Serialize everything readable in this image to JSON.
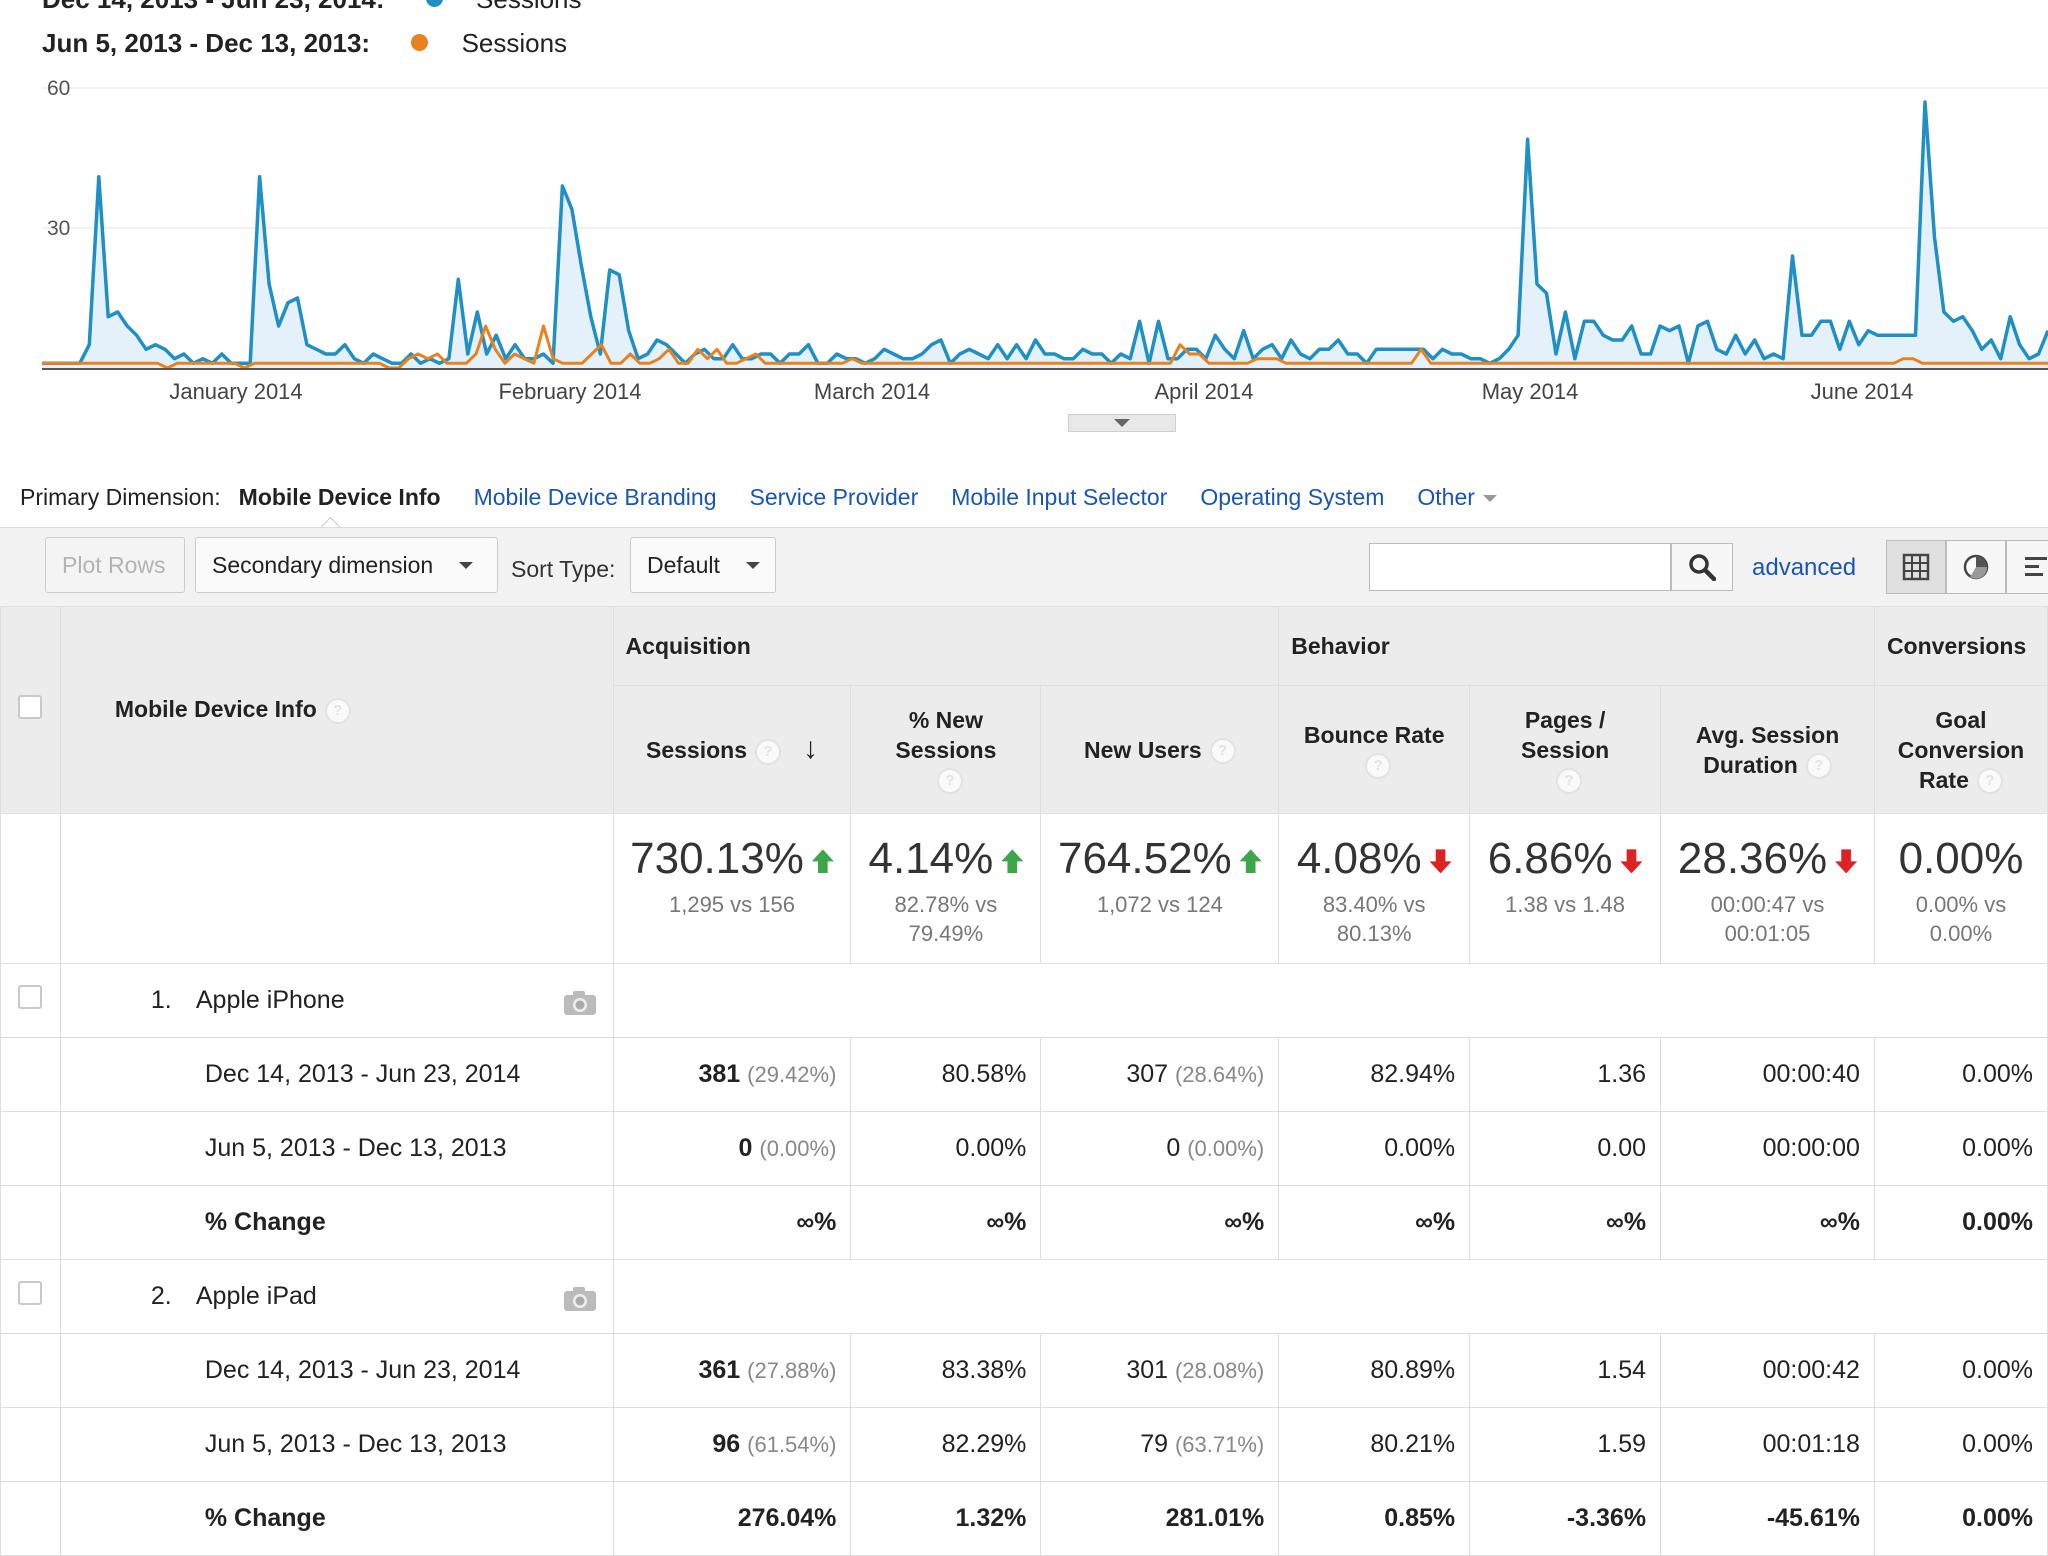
{
  "legend": {
    "range_top": "Dec 14, 2013 - Jun 23, 2014:",
    "range_bottom": "Jun 5, 2013 - Dec 13, 2013:",
    "series_label": "Sessions",
    "colors": {
      "current": "#1f8fc4",
      "previous": "#e8821e"
    }
  },
  "chart_data": {
    "type": "line",
    "ylim": [
      0,
      60
    ],
    "yticks": [
      "60",
      "30"
    ],
    "x_labels": [
      "January 2014",
      "February 2014",
      "March 2014",
      "April 2014",
      "May 2014",
      "June 2014"
    ],
    "series": [
      {
        "color": "#1f8fc4",
        "values": [
          1,
          1,
          1,
          1,
          1,
          5,
          41,
          11,
          12,
          9,
          7,
          4,
          5,
          4,
          2,
          3,
          1,
          2,
          1,
          3,
          1,
          1,
          1,
          41,
          18,
          9,
          14,
          15,
          5,
          4,
          3,
          3,
          5,
          2,
          1,
          3,
          2,
          1,
          1,
          3,
          1,
          2,
          1,
          2,
          19,
          3,
          12,
          3,
          7,
          2,
          5,
          2,
          2,
          3,
          1,
          39,
          34,
          22,
          11,
          3,
          21,
          20,
          8,
          2,
          3,
          6,
          5,
          3,
          1,
          3,
          4,
          2,
          2,
          5,
          2,
          2,
          3,
          3,
          1,
          3,
          3,
          5,
          1,
          1,
          3,
          2,
          2,
          1,
          2,
          4,
          3,
          2,
          2,
          3,
          5,
          6,
          1,
          3,
          4,
          3,
          2,
          5,
          2,
          5,
          2,
          6,
          3,
          3,
          2,
          2,
          4,
          3,
          3,
          1,
          3,
          2,
          10,
          1,
          10,
          2,
          2,
          4,
          4,
          2,
          7,
          4,
          2,
          8,
          2,
          4,
          5,
          2,
          6,
          3,
          2,
          4,
          4,
          6,
          3,
          3,
          1,
          4,
          4,
          4,
          4,
          4,
          4,
          2,
          4,
          3,
          3,
          2,
          2,
          1,
          2,
          4,
          7,
          49,
          18,
          16,
          3,
          12,
          2,
          10,
          10,
          7,
          6,
          6,
          9,
          3,
          3,
          9,
          8,
          9,
          1,
          9,
          10,
          4,
          3,
          7,
          3,
          6,
          2,
          3,
          2,
          24,
          7,
          7,
          10,
          10,
          4,
          10,
          5,
          8,
          7,
          7,
          7,
          7,
          7,
          57,
          28,
          12,
          10,
          11,
          8,
          4,
          6,
          2,
          11,
          5,
          2,
          3,
          8
        ]
      },
      {
        "color": "#e8821e",
        "values": [
          1,
          1,
          1,
          1,
          1,
          1,
          1,
          1,
          1,
          1,
          1,
          1,
          1,
          0,
          1,
          1,
          1,
          1,
          1,
          1,
          1,
          0,
          1,
          1,
          1,
          1,
          1,
          1,
          1,
          1,
          1,
          1,
          1,
          1,
          1,
          1,
          0,
          0,
          2,
          3,
          2,
          3,
          1,
          1,
          1,
          3,
          9,
          4,
          1,
          3,
          2,
          1,
          9,
          2,
          1,
          1,
          1,
          3,
          5,
          1,
          1,
          3,
          1,
          1,
          2,
          4,
          1,
          1,
          4,
          2,
          4,
          1,
          1,
          2,
          3,
          1,
          1,
          1,
          1,
          1,
          1,
          1,
          1,
          1,
          2,
          1,
          1,
          1,
          1,
          1,
          1,
          1,
          1,
          1,
          1,
          1,
          1,
          1,
          1,
          1,
          1,
          1,
          1,
          1,
          1,
          1,
          1,
          1,
          1,
          1,
          1,
          1,
          1,
          1,
          1,
          1,
          1,
          1,
          5,
          3,
          3,
          1,
          1,
          1,
          1,
          1,
          2,
          2,
          2,
          1,
          1,
          1,
          1,
          1,
          1,
          1,
          1,
          1,
          1,
          1,
          1,
          1,
          1,
          4,
          1,
          1,
          1,
          1,
          1,
          1,
          1,
          1,
          1,
          1,
          1,
          1,
          1,
          1,
          1,
          1,
          1,
          1,
          1,
          1,
          1,
          1,
          1,
          1,
          1,
          1,
          1,
          1,
          1,
          1,
          1,
          1,
          1,
          1,
          1,
          1,
          1,
          1,
          1,
          1,
          1,
          1,
          1,
          1,
          1,
          1,
          1,
          1,
          1,
          2,
          2,
          1,
          1,
          1,
          1,
          1,
          1,
          1,
          1,
          1,
          1,
          1,
          1,
          1,
          1
        ]
      }
    ]
  },
  "dims": {
    "label": "Primary Dimension:",
    "active": "Mobile Device Info",
    "links": [
      "Mobile Device Branding",
      "Service Provider",
      "Mobile Input Selector",
      "Operating System"
    ],
    "other": "Other"
  },
  "toolbar": {
    "plot_rows": "Plot Rows",
    "secondary": "Secondary dimension",
    "sort_label": "Sort Type:",
    "sort_value": "Default",
    "search_value": "",
    "advanced": "advanced"
  },
  "table": {
    "groups": {
      "acq": "Acquisition",
      "beh": "Behavior",
      "conv": "Conversions"
    },
    "dim_header": "Mobile Device Info",
    "cols": {
      "sessions": "Sessions",
      "new_sessions": "% New Sessions",
      "new_users": "New Users",
      "bounce": "Bounce Rate",
      "pages": "Pages / Session",
      "duration": "Avg. Session Duration",
      "goal": "Goal Conversion Rate"
    },
    "totals": [
      {
        "big": "730.13%",
        "sub1": "1,295 vs 156",
        "sub2": ""
      },
      {
        "big": "4.14%",
        "sub1": "82.78% vs",
        "sub2": "79.49%"
      },
      {
        "big": "764.52%",
        "sub1": "1,072 vs 124",
        "sub2": ""
      },
      {
        "big": "4.08%",
        "sub1": "83.40% vs",
        "sub2": "80.13%"
      },
      {
        "big": "6.86%",
        "sub1": "1.38 vs 1.48",
        "sub2": ""
      },
      {
        "big": "28.36%",
        "sub1": "00:00:47 vs",
        "sub2": "00:01:05"
      },
      {
        "big": "0.00%",
        "sub1": "0.00% vs",
        "sub2": "0.00%"
      }
    ],
    "devices": [
      {
        "num": "1.",
        "name": "Apple iPhone",
        "rows": [
          {
            "label": "Dec 14, 2013 - Jun 23, 2014",
            "sessions": "381",
            "sessions_pct": "(29.42%)",
            "new_sessions": "80.58%",
            "new_users": "307",
            "new_users_pct": "(28.64%)",
            "bounce": "82.94%",
            "pages": "1.36",
            "duration": "00:00:40",
            "goal": "0.00%"
          },
          {
            "label": "Jun 5, 2013 - Dec 13, 2013",
            "sessions": "0",
            "sessions_pct": "(0.00%)",
            "new_sessions": "0.00%",
            "new_users": "0",
            "new_users_pct": "(0.00%)",
            "bounce": "0.00%",
            "pages": "0.00",
            "duration": "00:00:00",
            "goal": "0.00%"
          },
          {
            "label": "% Change",
            "sessions": "∞%",
            "sessions_pct": "",
            "new_sessions": "∞%",
            "new_users": "∞%",
            "new_users_pct": "",
            "bounce": "∞%",
            "pages": "∞%",
            "duration": "∞%",
            "goal": "0.00%"
          }
        ]
      },
      {
        "num": "2.",
        "name": "Apple iPad",
        "rows": [
          {
            "label": "Dec 14, 2013 - Jun 23, 2014",
            "sessions": "361",
            "sessions_pct": "(27.88%)",
            "new_sessions": "83.38%",
            "new_users": "301",
            "new_users_pct": "(28.08%)",
            "bounce": "80.89%",
            "pages": "1.54",
            "duration": "00:00:42",
            "goal": "0.00%"
          },
          {
            "label": "Jun 5, 2013 - Dec 13, 2013",
            "sessions": "96",
            "sessions_pct": "(61.54%)",
            "new_sessions": "82.29%",
            "new_users": "79",
            "new_users_pct": "(63.71%)",
            "bounce": "80.21%",
            "pages": "1.59",
            "duration": "00:01:18",
            "goal": "0.00%"
          },
          {
            "label": "% Change",
            "sessions": "276.04%",
            "sessions_pct": "",
            "new_sessions": "1.32%",
            "new_users": "281.01%",
            "new_users_pct": "",
            "bounce": "0.85%",
            "pages": "-3.36%",
            "duration": "-45.61%",
            "goal": "0.00%"
          }
        ]
      }
    ]
  }
}
